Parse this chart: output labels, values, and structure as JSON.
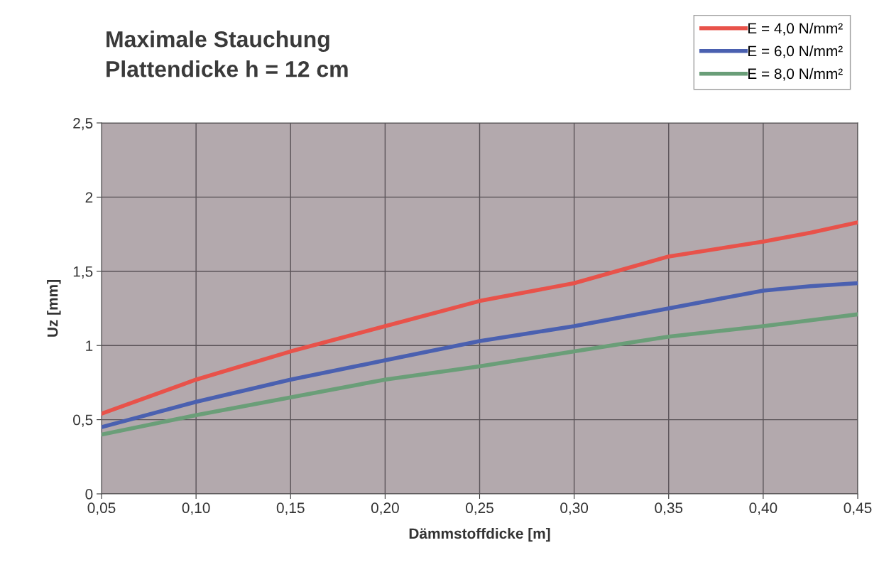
{
  "chart_data": {
    "type": "line",
    "title": "Maximale Stauchung",
    "subtitle": "Plattendicke h = 12 cm",
    "xlabel": "Dämmstoffdicke [m]",
    "ylabel": "Uz [mm]",
    "x": [
      0.05,
      0.1,
      0.15,
      0.2,
      0.25,
      0.275,
      0.3,
      0.325,
      0.35,
      0.4,
      0.425,
      0.45
    ],
    "series": [
      {
        "name": "E = 4,0 N/mm²",
        "color": "#e8524a",
        "values": [
          0.54,
          0.77,
          0.96,
          1.13,
          1.3,
          1.36,
          1.42,
          1.51,
          1.6,
          1.7,
          1.76,
          1.83
        ]
      },
      {
        "name": "E = 6,0 N/mm²",
        "color": "#4a60b0",
        "values": [
          0.45,
          0.62,
          0.77,
          0.9,
          1.03,
          1.08,
          1.13,
          1.19,
          1.25,
          1.37,
          1.4,
          1.42
        ]
      },
      {
        "name": "E = 8,0 N/mm²",
        "color": "#6a9e78",
        "values": [
          0.4,
          0.53,
          0.65,
          0.77,
          0.86,
          0.91,
          0.96,
          1.01,
          1.06,
          1.13,
          1.17,
          1.21
        ]
      }
    ],
    "xlim": [
      0.05,
      0.45
    ],
    "ylim": [
      0,
      2.5
    ],
    "xticks": [
      {
        "value": 0.05,
        "label": "0,05"
      },
      {
        "value": 0.1,
        "label": "0,10"
      },
      {
        "value": 0.15,
        "label": "0,15"
      },
      {
        "value": 0.2,
        "label": "0,20"
      },
      {
        "value": 0.25,
        "label": "0,25"
      },
      {
        "value": 0.3,
        "label": "0,30"
      },
      {
        "value": 0.35,
        "label": "0,35"
      },
      {
        "value": 0.4,
        "label": "0,40"
      },
      {
        "value": 0.45,
        "label": "0,45"
      }
    ],
    "yticks": [
      0,
      {
        "value": 0.5,
        "label": "0,5"
      },
      1,
      {
        "value": 1.5,
        "label": "1,5"
      },
      2,
      {
        "value": 2.5,
        "label": "2,5"
      }
    ],
    "grid": true,
    "legend": "top right",
    "marker": "none",
    "line_style": "solid"
  }
}
